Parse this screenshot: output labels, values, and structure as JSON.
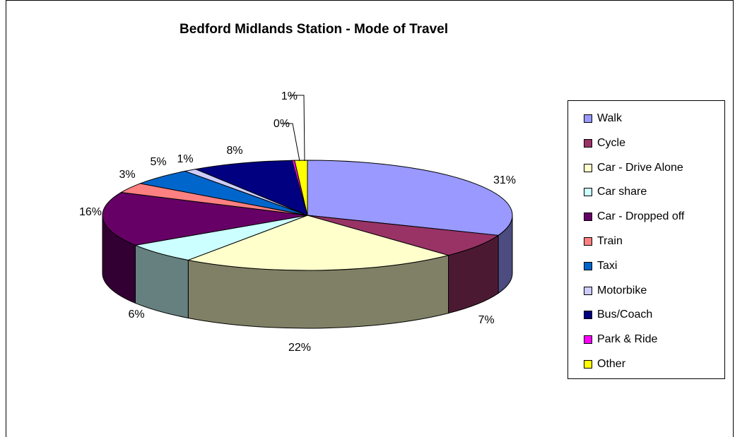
{
  "chart_data": {
    "type": "pie",
    "title": "Bedford Midlands Station - Mode of Travel",
    "legend_position": "right",
    "slices": [
      {
        "label": "Walk",
        "value": 31,
        "display": "31%",
        "color": "#9999FF",
        "side_color": "#4C4C80"
      },
      {
        "label": "Cycle",
        "value": 7,
        "display": "7%",
        "color": "#993366",
        "side_color": "#4C1933"
      },
      {
        "label": "Car - Drive Alone",
        "value": 22,
        "display": "22%",
        "color": "#FFFFCC",
        "side_color": "#808066"
      },
      {
        "label": "Car share",
        "value": 6,
        "display": "6%",
        "color": "#CCFFFF",
        "side_color": "#668080"
      },
      {
        "label": "Car - Dropped off",
        "value": 16,
        "display": "16%",
        "color": "#660066",
        "side_color": "#330033"
      },
      {
        "label": "Train",
        "value": 3,
        "display": "3%",
        "color": "#FF8080",
        "side_color": "#804040"
      },
      {
        "label": "Taxi",
        "value": 5,
        "display": "5%",
        "color": "#0066CC",
        "side_color": "#003366"
      },
      {
        "label": "Motorbike",
        "value": 1,
        "display": "1%",
        "color": "#CCCCFF",
        "side_color": "#666680"
      },
      {
        "label": "Bus/Coach",
        "value": 8,
        "display": "8%",
        "color": "#000080",
        "side_color": "#000040"
      },
      {
        "label": "Park & Ride",
        "value": 0.2,
        "display": "0%",
        "color": "#FF00FF",
        "side_color": "#800080"
      },
      {
        "label": "Other",
        "value": 1,
        "display": "1%",
        "color": "#FFFF00",
        "side_color": "#808000"
      }
    ]
  }
}
